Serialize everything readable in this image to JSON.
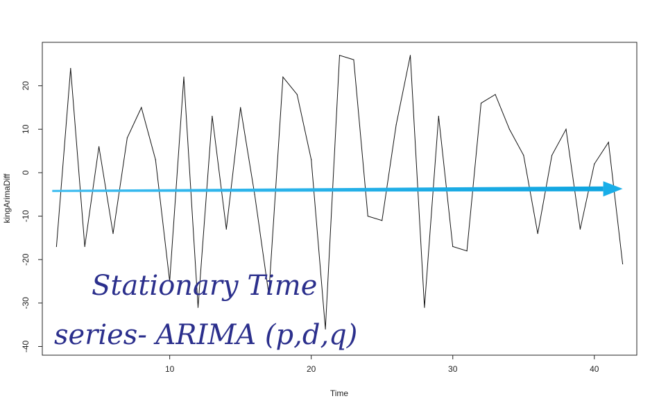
{
  "chart_data": {
    "type": "line",
    "xlabel": "Time",
    "ylabel": "kingArimaDiff",
    "xlim": [
      1,
      43
    ],
    "ylim": [
      -42,
      30
    ],
    "xticks": [
      10,
      20,
      30,
      40
    ],
    "yticks": [
      -40,
      -30,
      -20,
      -10,
      0,
      10,
      20
    ],
    "grid": false,
    "line_color": "#111111",
    "x": [
      2,
      3,
      4,
      5,
      6,
      7,
      8,
      9,
      10,
      11,
      12,
      13,
      14,
      15,
      16,
      17,
      18,
      19,
      20,
      21,
      22,
      23,
      24,
      25,
      26,
      27,
      28,
      29,
      30,
      31,
      32,
      33,
      34,
      35,
      36,
      37,
      38,
      39,
      40,
      41,
      42
    ],
    "y": [
      -17,
      24,
      -17,
      6,
      -14,
      8,
      15,
      3,
      -25,
      22,
      -31,
      13,
      -13,
      15,
      -5,
      -28,
      22,
      18,
      3,
      -36,
      27,
      26,
      -10,
      -11,
      11,
      27,
      -31,
      13,
      -17,
      -18,
      16,
      18,
      10,
      4,
      -14,
      4,
      10,
      -13,
      2,
      7,
      -21
    ],
    "arrow": {
      "from": [
        1.7,
        -4.2
      ],
      "to": [
        42,
        -3.7
      ],
      "color": "#19aee8"
    },
    "annotation": {
      "line1": "Stationary Time",
      "line2": "series- ARIMA (p,d,q)",
      "color": "#2b2f8c"
    }
  }
}
